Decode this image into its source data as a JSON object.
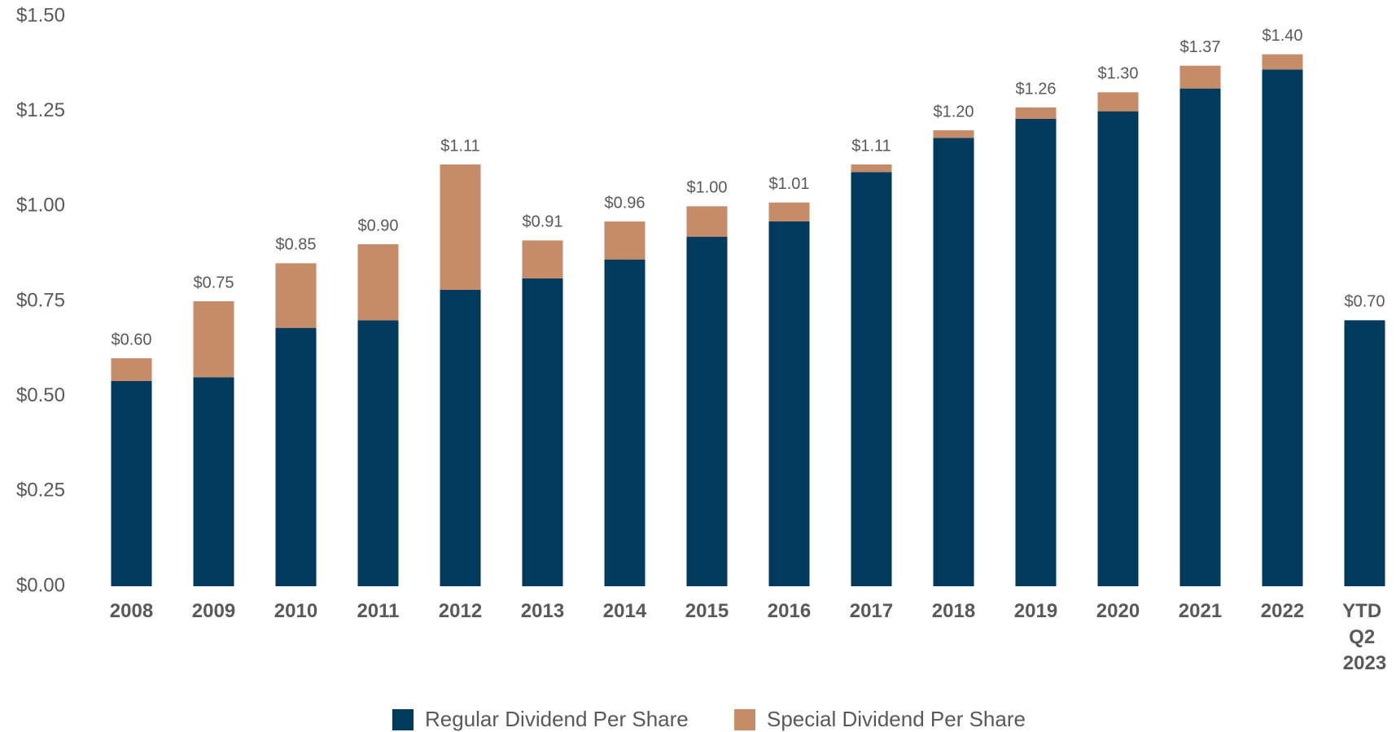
{
  "chart_data": {
    "type": "stacked_bar",
    "categories": [
      "2008",
      "2009",
      "2010",
      "2011",
      "2012",
      "2013",
      "2014",
      "2015",
      "2016",
      "2017",
      "2018",
      "2019",
      "2020",
      "2021",
      "2022",
      "YTD Q2 2023"
    ],
    "series": [
      {
        "name": "Regular Dividend Per Share",
        "color": "#003a5d",
        "values": [
          0.54,
          0.55,
          0.68,
          0.7,
          0.78,
          0.81,
          0.86,
          0.92,
          0.96,
          1.09,
          1.18,
          1.23,
          1.25,
          1.31,
          1.36,
          0.7
        ]
      },
      {
        "name": "Special Dividend Per Share",
        "color": "#c68b67",
        "values": [
          0.06,
          0.2,
          0.17,
          0.2,
          0.33,
          0.1,
          0.1,
          0.08,
          0.05,
          0.02,
          0.02,
          0.03,
          0.05,
          0.06,
          0.04,
          null
        ]
      }
    ],
    "totals": [
      0.6,
      0.75,
      0.85,
      0.9,
      1.11,
      0.91,
      0.96,
      1.0,
      1.01,
      1.11,
      1.2,
      1.26,
      1.3,
      1.37,
      1.4,
      0.7
    ],
    "total_labels": [
      "$0.60",
      "$0.75",
      "$0.85",
      "$0.90",
      "$1.11",
      "$0.91",
      "$0.96",
      "$1.00",
      "$1.01",
      "$1.11",
      "$1.20",
      "$1.26",
      "$1.30",
      "$1.37",
      "$1.40",
      "$0.70"
    ],
    "ylim": [
      0,
      1.5
    ],
    "yticks": [
      {
        "value": 0,
        "label": "$0.00"
      },
      {
        "value": 0.25,
        "label": "$0.25"
      },
      {
        "value": 0.5,
        "label": "$0.50"
      },
      {
        "value": 0.75,
        "label": "$0.75"
      },
      {
        "value": 1.0,
        "label": "$1.00"
      },
      {
        "value": 1.25,
        "label": "$1.25"
      },
      {
        "value": 1.5,
        "label": "$1.50"
      }
    ],
    "grid": false,
    "legend": "bottom"
  }
}
